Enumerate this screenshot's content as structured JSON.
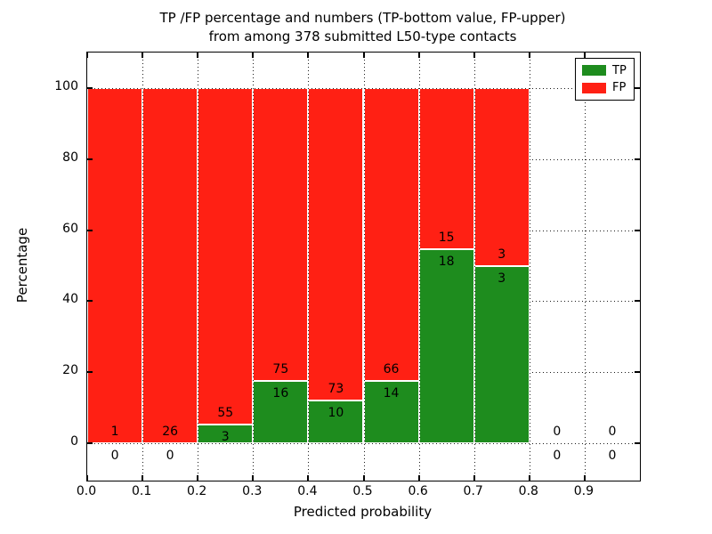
{
  "title": {
    "line1": "TP /FP percentage and numbers (TP-bottom value, FP-upper)",
    "line2": "from among 378 submitted L50-type contacts"
  },
  "axes": {
    "xlabel": "Predicted probability",
    "ylabel": "Percentage",
    "x_tick_labels": [
      "0.0",
      "0.1",
      "0.2",
      "0.3",
      "0.4",
      "0.5",
      "0.6",
      "0.7",
      "0.8",
      "0.9"
    ],
    "x_tick_values": [
      0.0,
      0.1,
      0.2,
      0.3,
      0.4,
      0.5,
      0.6,
      0.7,
      0.8,
      0.9
    ],
    "y_tick_labels": [
      "0",
      "20",
      "40",
      "60",
      "80",
      "100"
    ],
    "y_tick_values": [
      0,
      20,
      40,
      60,
      80,
      100
    ],
    "xlim": [
      0.0,
      1.0
    ],
    "ylim": [
      -10.5,
      110
    ],
    "grid": "dotted"
  },
  "legend": {
    "position": "upper-right",
    "entries": [
      {
        "label": "TP",
        "color": "#1e8c1e"
      },
      {
        "label": "FP",
        "color": "#ff2014"
      }
    ]
  },
  "chart_data": {
    "type": "bar",
    "stacked": true,
    "normalized_to": 100,
    "title": "TP /FP percentage and numbers (TP-bottom value, FP-upper) from among 378 submitted L50-type contacts",
    "xlabel": "Predicted probability",
    "ylabel": "Percentage",
    "total_contacts": 378,
    "bin_width": 0.1,
    "bin_starts": [
      0.0,
      0.1,
      0.2,
      0.3,
      0.4,
      0.5,
      0.6,
      0.7,
      0.8,
      0.9
    ],
    "series": [
      {
        "name": "TP",
        "color": "#1e8c1e",
        "counts": [
          0,
          0,
          3,
          16,
          10,
          14,
          18,
          3,
          0,
          0
        ]
      },
      {
        "name": "FP",
        "color": "#ff2014",
        "counts": [
          1,
          26,
          55,
          75,
          73,
          66,
          15,
          3,
          0,
          0
        ]
      }
    ],
    "tp_percent": [
      0,
      0,
      5.17,
      17.58,
      12.05,
      17.5,
      54.55,
      50.0,
      0,
      0
    ],
    "fp_percent": [
      100,
      100,
      94.83,
      82.42,
      87.95,
      82.5,
      45.45,
      50.0,
      0,
      0
    ]
  }
}
